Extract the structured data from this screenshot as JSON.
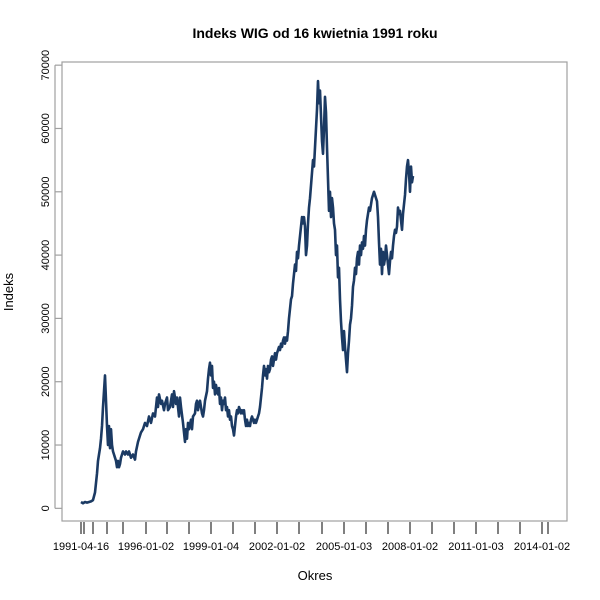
{
  "chart_data": {
    "type": "line",
    "title": "Indeks WIG od 16 kwietnia 1991 roku",
    "xlabel": "Okres",
    "ylabel": "Indeks",
    "x_unit": "session index (0 = 1991-04-16, last ≈ 468)",
    "xlim": [
      -19,
      486
    ],
    "ylim": [
      -2000,
      70500
    ],
    "grid": false,
    "legend": "none",
    "line_color": "#1b3a63",
    "y_ticks": [
      0,
      10000,
      20000,
      30000,
      40000,
      50000,
      60000,
      70000
    ],
    "x_ticks": [
      {
        "x": 0,
        "label": "1991-04-16"
      },
      {
        "x": 3,
        "label": ""
      },
      {
        "x": 12,
        "label": ""
      },
      {
        "x": 26,
        "label": ""
      },
      {
        "x": 42,
        "label": ""
      },
      {
        "x": 65,
        "label": "1996-01-02"
      },
      {
        "x": 86,
        "label": ""
      },
      {
        "x": 108,
        "label": ""
      },
      {
        "x": 130,
        "label": "1999-01-04"
      },
      {
        "x": 152,
        "label": ""
      },
      {
        "x": 174,
        "label": ""
      },
      {
        "x": 196,
        "label": "2002-01-02"
      },
      {
        "x": 218,
        "label": ""
      },
      {
        "x": 241,
        "label": ""
      },
      {
        "x": 263,
        "label": "2005-01-03"
      },
      {
        "x": 285,
        "label": ""
      },
      {
        "x": 307,
        "label": ""
      },
      {
        "x": 329,
        "label": "2008-01-02"
      },
      {
        "x": 351,
        "label": ""
      },
      {
        "x": 373,
        "label": ""
      },
      {
        "x": 395,
        "label": "2011-01-03"
      },
      {
        "x": 417,
        "label": ""
      },
      {
        "x": 439,
        "label": ""
      },
      {
        "x": 461,
        "label": "2014-01-02"
      },
      {
        "x": 467,
        "label": ""
      }
    ],
    "series": [
      {
        "name": "WIG",
        "points": [
          [
            0,
            1000
          ],
          [
            2,
            800
          ],
          [
            4,
            1000
          ],
          [
            6,
            900
          ],
          [
            8,
            1000
          ],
          [
            10,
            1100
          ],
          [
            12,
            1300
          ],
          [
            14,
            2500
          ],
          [
            15,
            4000
          ],
          [
            16,
            5500
          ],
          [
            17,
            7500
          ],
          [
            18,
            8500
          ],
          [
            19,
            9500
          ],
          [
            20,
            11000
          ],
          [
            21,
            13000
          ],
          [
            22,
            16000
          ],
          [
            23,
            18500
          ],
          [
            24,
            21000
          ],
          [
            25,
            17000
          ],
          [
            26,
            13000
          ],
          [
            27,
            10000
          ],
          [
            28,
            13000
          ],
          [
            29,
            9500
          ],
          [
            30,
            12500
          ],
          [
            31,
            10000
          ],
          [
            32,
            9000
          ],
          [
            33,
            8500
          ],
          [
            34,
            8000
          ],
          [
            35,
            7500
          ],
          [
            36,
            6500
          ],
          [
            37,
            7500
          ],
          [
            38,
            6500
          ],
          [
            39,
            7000
          ],
          [
            40,
            8000
          ],
          [
            42,
            9000
          ],
          [
            44,
            8500
          ],
          [
            45,
            9000
          ],
          [
            47,
            8500
          ],
          [
            48,
            9000
          ],
          [
            50,
            8000
          ],
          [
            52,
            8500
          ],
          [
            54,
            7700
          ],
          [
            55,
            9000
          ],
          [
            57,
            10500
          ],
          [
            59,
            11500
          ],
          [
            60,
            12000
          ],
          [
            62,
            12500
          ],
          [
            64,
            13500
          ],
          [
            66,
            13000
          ],
          [
            68,
            14500
          ],
          [
            70,
            13500
          ],
          [
            72,
            15000
          ],
          [
            74,
            14500
          ],
          [
            76,
            17500
          ],
          [
            77,
            16000
          ],
          [
            78,
            18000
          ],
          [
            80,
            16500
          ],
          [
            81,
            17000
          ],
          [
            83,
            15500
          ],
          [
            84,
            16500
          ],
          [
            86,
            17500
          ],
          [
            87,
            15500
          ],
          [
            89,
            16000
          ],
          [
            91,
            18000
          ],
          [
            92,
            16000
          ],
          [
            93,
            18500
          ],
          [
            95,
            16500
          ],
          [
            96,
            17500
          ],
          [
            98,
            14500
          ],
          [
            99,
            17500
          ],
          [
            100,
            16000
          ],
          [
            102,
            13500
          ],
          [
            103,
            12000
          ],
          [
            104,
            10500
          ],
          [
            105,
            12500
          ],
          [
            106,
            11000
          ],
          [
            107,
            13500
          ],
          [
            108,
            12500
          ],
          [
            110,
            14000
          ],
          [
            111,
            12500
          ],
          [
            112,
            14500
          ],
          [
            114,
            15000
          ],
          [
            115,
            16500
          ],
          [
            116,
            17000
          ],
          [
            117,
            15500
          ],
          [
            118,
            16500
          ],
          [
            119,
            17000
          ],
          [
            120,
            16000
          ],
          [
            121,
            15000
          ],
          [
            122,
            14500
          ],
          [
            123,
            15500
          ],
          [
            124,
            17000
          ],
          [
            126,
            18500
          ],
          [
            127,
            20500
          ],
          [
            128,
            22000
          ],
          [
            129,
            23000
          ],
          [
            130,
            21000
          ],
          [
            131,
            22500
          ],
          [
            132,
            19000
          ],
          [
            133,
            20000
          ],
          [
            134,
            18000
          ],
          [
            135,
            19500
          ],
          [
            136,
            18500
          ],
          [
            137,
            18000
          ],
          [
            138,
            19000
          ],
          [
            139,
            16500
          ],
          [
            140,
            17500
          ],
          [
            141,
            15500
          ],
          [
            142,
            17000
          ],
          [
            143,
            16500
          ],
          [
            144,
            17500
          ],
          [
            145,
            15500
          ],
          [
            146,
            16000
          ],
          [
            147,
            14500
          ],
          [
            148,
            15500
          ],
          [
            149,
            14000
          ],
          [
            150,
            14500
          ],
          [
            151,
            13000
          ],
          [
            152,
            12500
          ],
          [
            153,
            11500
          ],
          [
            154,
            13000
          ],
          [
            155,
            14500
          ],
          [
            156,
            15500
          ],
          [
            157,
            15000
          ],
          [
            158,
            16000
          ],
          [
            159,
            15500
          ],
          [
            160,
            15000
          ],
          [
            161,
            15500
          ],
          [
            162,
            15000
          ],
          [
            163,
            15500
          ],
          [
            164,
            14000
          ],
          [
            165,
            13000
          ],
          [
            166,
            14000
          ],
          [
            167,
            13000
          ],
          [
            168,
            13500
          ],
          [
            169,
            13000
          ],
          [
            170,
            14000
          ],
          [
            171,
            14500
          ],
          [
            172,
            14000
          ],
          [
            173,
            13500
          ],
          [
            174,
            14000
          ],
          [
            175,
            13500
          ],
          [
            176,
            14000
          ],
          [
            177,
            14500
          ],
          [
            178,
            15000
          ],
          [
            179,
            16000
          ],
          [
            180,
            17500
          ],
          [
            181,
            19000
          ],
          [
            182,
            21000
          ],
          [
            183,
            22500
          ],
          [
            184,
            21000
          ],
          [
            185,
            22000
          ],
          [
            186,
            20500
          ],
          [
            187,
            22500
          ],
          [
            188,
            21500
          ],
          [
            189,
            22000
          ],
          [
            190,
            23500
          ],
          [
            191,
            24000
          ],
          [
            192,
            22500
          ],
          [
            193,
            23500
          ],
          [
            194,
            24500
          ],
          [
            195,
            23500
          ],
          [
            196,
            24500
          ],
          [
            197,
            25000
          ],
          [
            198,
            25500
          ],
          [
            199,
            25000
          ],
          [
            200,
            26000
          ],
          [
            201,
            25500
          ],
          [
            202,
            26500
          ],
          [
            203,
            27000
          ],
          [
            204,
            26000
          ],
          [
            205,
            27000
          ],
          [
            206,
            26500
          ],
          [
            207,
            28000
          ],
          [
            208,
            30000
          ],
          [
            209,
            31500
          ],
          [
            210,
            33000
          ],
          [
            211,
            33500
          ],
          [
            212,
            35500
          ],
          [
            213,
            37000
          ],
          [
            214,
            38500
          ],
          [
            215,
            37500
          ],
          [
            216,
            40500
          ],
          [
            217,
            39500
          ],
          [
            218,
            41500
          ],
          [
            219,
            43000
          ],
          [
            220,
            44500
          ],
          [
            221,
            46000
          ],
          [
            222,
            45000
          ],
          [
            223,
            46000
          ],
          [
            224,
            44500
          ],
          [
            225,
            40000
          ],
          [
            226,
            41500
          ],
          [
            227,
            45000
          ],
          [
            228,
            47500
          ],
          [
            229,
            49000
          ],
          [
            230,
            51000
          ],
          [
            231,
            53000
          ],
          [
            232,
            55000
          ],
          [
            233,
            54000
          ],
          [
            234,
            57000
          ],
          [
            235,
            60000
          ],
          [
            236,
            63000
          ],
          [
            237,
            67500
          ],
          [
            238,
            64000
          ],
          [
            239,
            66000
          ],
          [
            240,
            62000
          ],
          [
            241,
            58000
          ],
          [
            242,
            56000
          ],
          [
            243,
            60000
          ],
          [
            244,
            65000
          ],
          [
            245,
            62500
          ],
          [
            246,
            57000
          ],
          [
            247,
            52000
          ],
          [
            248,
            47000
          ],
          [
            249,
            50000
          ],
          [
            250,
            46000
          ],
          [
            251,
            49000
          ],
          [
            252,
            47500
          ],
          [
            253,
            45000
          ],
          [
            254,
            44000
          ],
          [
            255,
            40000
          ],
          [
            256,
            41500
          ],
          [
            257,
            36500
          ],
          [
            258,
            38000
          ],
          [
            259,
            33000
          ],
          [
            260,
            29500
          ],
          [
            261,
            27000
          ],
          [
            262,
            25000
          ],
          [
            263,
            28000
          ],
          [
            264,
            25500
          ],
          [
            265,
            23500
          ],
          [
            266,
            21500
          ],
          [
            267,
            24500
          ],
          [
            268,
            26500
          ],
          [
            269,
            29000
          ],
          [
            270,
            30000
          ],
          [
            271,
            32000
          ],
          [
            272,
            35000
          ],
          [
            273,
            36000
          ],
          [
            274,
            38000
          ],
          [
            275,
            37000
          ],
          [
            276,
            39500
          ],
          [
            277,
            40500
          ],
          [
            278,
            38500
          ],
          [
            279,
            41500
          ],
          [
            280,
            40000
          ],
          [
            281,
            42000
          ],
          [
            282,
            41000
          ],
          [
            283,
            43000
          ],
          [
            284,
            41500
          ],
          [
            285,
            44000
          ],
          [
            286,
            45500
          ],
          [
            287,
            46500
          ],
          [
            288,
            47500
          ],
          [
            289,
            47000
          ],
          [
            290,
            48000
          ],
          [
            291,
            49000
          ],
          [
            292,
            49500
          ],
          [
            293,
            50000
          ],
          [
            294,
            49500
          ],
          [
            295,
            49000
          ],
          [
            296,
            48500
          ],
          [
            297,
            46000
          ],
          [
            298,
            42000
          ],
          [
            299,
            38500
          ],
          [
            300,
            41000
          ],
          [
            301,
            37000
          ],
          [
            302,
            40500
          ],
          [
            303,
            38500
          ],
          [
            304,
            39500
          ],
          [
            305,
            41500
          ],
          [
            306,
            40000
          ],
          [
            307,
            38500
          ],
          [
            308,
            37000
          ],
          [
            309,
            39000
          ],
          [
            310,
            40500
          ],
          [
            311,
            39500
          ],
          [
            312,
            41500
          ],
          [
            313,
            43000
          ],
          [
            314,
            44000
          ],
          [
            315,
            43500
          ],
          [
            316,
            44500
          ],
          [
            317,
            47500
          ],
          [
            318,
            46500
          ],
          [
            319,
            47000
          ],
          [
            320,
            45500
          ],
          [
            321,
            44000
          ],
          [
            322,
            46500
          ],
          [
            323,
            48000
          ],
          [
            324,
            49500
          ],
          [
            325,
            52000
          ],
          [
            326,
            54000
          ],
          [
            327,
            55000
          ],
          [
            328,
            53000
          ],
          [
            329,
            50000
          ],
          [
            330,
            54000
          ],
          [
            331,
            51500
          ],
          [
            332,
            52500
          ]
        ]
      }
    ]
  }
}
